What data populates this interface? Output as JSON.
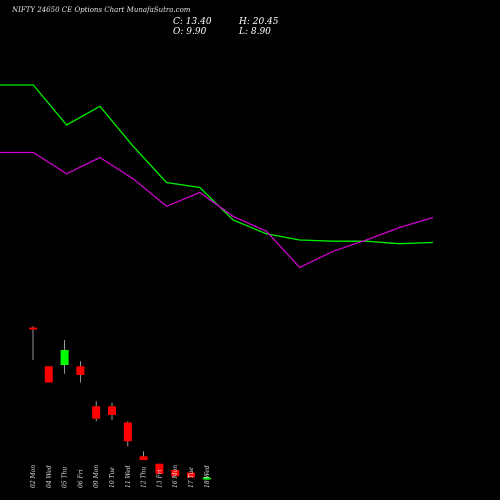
{
  "header": {
    "title": "NIFTY 24650  CE Options  Chart MunafaSutra.com",
    "close_label": "C: 13.40",
    "high_label": "H: 20.45",
    "open_label": "O: 9.90",
    "low_label": "L: 8.90"
  },
  "colors": {
    "background": "#000000",
    "up": "#00ff00",
    "down": "#ff0000",
    "ma_fast": "#00ee00",
    "ma_slow": "#cc00cc"
  },
  "chart_data": {
    "type": "candlestick",
    "title": "NIFTY 24650  CE Options  Chart MunafaSutra.com",
    "categories": [
      "02 Mon",
      "04 Wed",
      "05 Thu",
      "06 Fri",
      "09 Mon",
      "10 Tue",
      "11 Wed",
      "12 Thu",
      "13 Fri",
      "16 Mon",
      "17 Tue",
      "18 Wed"
    ],
    "candles": [
      {
        "open": 100,
        "high": 101,
        "low": 74,
        "close": 99
      },
      {
        "open": 69,
        "high": 69,
        "low": 56,
        "close": 56
      },
      {
        "open": 70,
        "high": 90,
        "low": 63,
        "close": 82
      },
      {
        "open": 69,
        "high": 73,
        "low": 56,
        "close": 62
      },
      {
        "open": 37,
        "high": 41,
        "low": 25,
        "close": 27
      },
      {
        "open": 37,
        "high": 40,
        "low": 26,
        "close": 30
      },
      {
        "open": 24,
        "high": 25,
        "low": 5,
        "close": 9
      },
      {
        "open": -3,
        "high": 1,
        "low": -6,
        "close": -6
      },
      {
        "open": -9,
        "high": -9,
        "low": -17,
        "close": -17
      },
      {
        "open": -14,
        "high": -14,
        "low": -19,
        "close": -19
      },
      {
        "open": -16,
        "high": -16,
        "low": -20,
        "close": -20
      },
      {
        "open": -21,
        "high": -19,
        "low": -22,
        "close": -20
      }
    ],
    "ma_fast": [
      294,
      294,
      262,
      277,
      245,
      216,
      212,
      186,
      175,
      170,
      169,
      169,
      167,
      168
    ],
    "ma_slow": [
      240,
      240,
      223,
      236,
      219,
      197,
      208,
      189,
      177,
      148,
      161,
      170,
      180,
      188
    ],
    "ma_x_count": 14,
    "ylim": [
      -30,
      330
    ]
  }
}
